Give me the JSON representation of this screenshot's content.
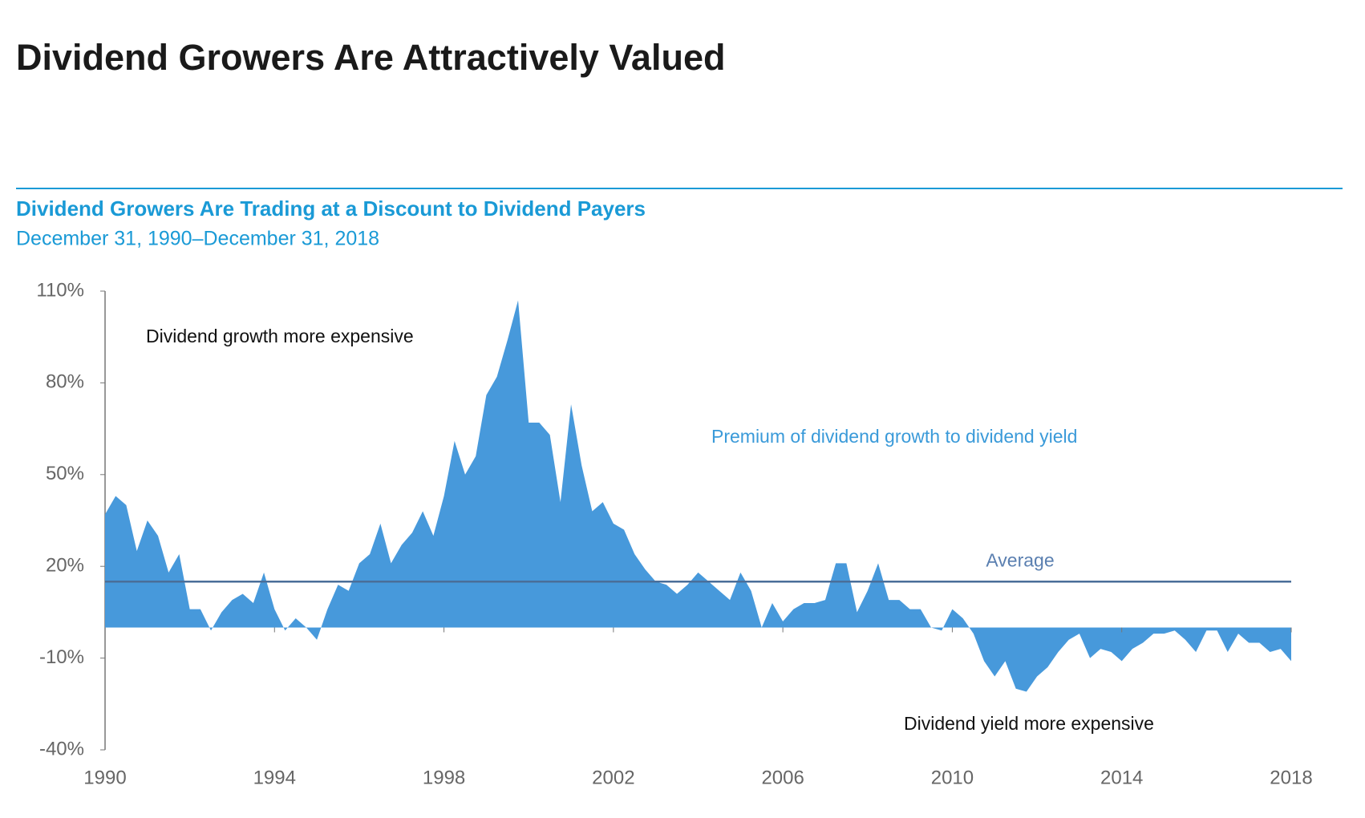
{
  "chart_data": {
    "type": "area",
    "title": "Dividend Growers Are Attractively Valued",
    "subtitle": "Dividend Growers Are Trading at a Discount to Dividend Payers",
    "date_range": "December 31, 1990–December 31, 2018",
    "annotations": [
      "Dividend growth more expensive",
      "Premium of dividend growth to dividend yield",
      "Dividend yield more expensive"
    ],
    "average": {
      "label": "Average",
      "value": 15,
      "color": "#4a6e99"
    },
    "color": "#4799db",
    "x": [
      1990,
      1990.25,
      1990.5,
      1990.75,
      1991,
      1991.25,
      1991.5,
      1991.75,
      1992,
      1992.25,
      1992.5,
      1992.75,
      1993,
      1993.25,
      1993.5,
      1993.75,
      1994,
      1994.25,
      1994.5,
      1994.75,
      1995,
      1995.25,
      1995.5,
      1995.75,
      1996,
      1996.25,
      1996.5,
      1996.75,
      1997,
      1997.25,
      1997.5,
      1997.75,
      1998,
      1998.25,
      1998.5,
      1998.75,
      1999,
      1999.25,
      1999.5,
      1999.75,
      2000,
      2000.25,
      2000.5,
      2000.75,
      2001,
      2001.25,
      2001.5,
      2001.75,
      2002,
      2002.25,
      2002.5,
      2002.75,
      2003,
      2003.25,
      2003.5,
      2003.75,
      2004,
      2004.25,
      2004.5,
      2004.75,
      2005,
      2005.25,
      2005.5,
      2005.75,
      2006,
      2006.25,
      2006.5,
      2006.75,
      2007,
      2007.25,
      2007.5,
      2007.75,
      2008,
      2008.25,
      2008.5,
      2008.75,
      2009,
      2009.25,
      2009.5,
      2009.75,
      2010,
      2010.25,
      2010.5,
      2010.75,
      2011,
      2011.25,
      2011.5,
      2011.75,
      2012,
      2012.25,
      2012.5,
      2012.75,
      2013,
      2013.25,
      2013.5,
      2013.75,
      2014,
      2014.25,
      2014.5,
      2014.75,
      2015,
      2015.25,
      2015.5,
      2015.75,
      2016,
      2016.25,
      2016.5,
      2016.75,
      2017,
      2017.25,
      2017.5,
      2017.75,
      2018
    ],
    "values": [
      37,
      43,
      40,
      25,
      35,
      30,
      18,
      24,
      6,
      6,
      -1,
      5,
      9,
      11,
      8,
      18,
      6,
      -1,
      3,
      0,
      -4,
      6,
      14,
      12,
      21,
      24,
      34,
      21,
      27,
      31,
      38,
      30,
      43,
      61,
      50,
      56,
      76,
      82,
      94,
      107,
      67,
      67,
      63,
      41,
      73,
      53,
      38,
      41,
      34,
      32,
      24,
      19,
      15,
      14,
      11,
      14,
      18,
      15,
      12,
      9,
      18,
      12,
      0,
      8,
      2,
      6,
      8,
      8,
      9,
      21,
      21,
      5,
      12,
      21,
      9,
      9,
      6,
      6,
      0,
      -1,
      6,
      3,
      -2,
      -11,
      -16,
      -11,
      -20,
      -21,
      -16,
      -13,
      -8,
      -4,
      -2,
      -10,
      -7,
      -8,
      -11,
      -7,
      -5,
      -2,
      -2,
      -1,
      -4,
      -8,
      -1,
      -1,
      -8,
      -2,
      -5,
      -5,
      -8,
      -7,
      -11
    ],
    "xlim": [
      1990,
      2018
    ],
    "xticks": [
      1990,
      1994,
      1998,
      2002,
      2006,
      2010,
      2014,
      2018
    ],
    "ylim": [
      -40,
      110
    ],
    "yticks": [
      {
        "value": -40,
        "label": "-40%"
      },
      {
        "value": -10,
        "label": "-10%"
      },
      {
        "value": 20,
        "label": "20%"
      },
      {
        "value": 50,
        "label": "50%"
      },
      {
        "value": 80,
        "label": "80%"
      },
      {
        "value": 110,
        "label": "110%"
      }
    ]
  }
}
